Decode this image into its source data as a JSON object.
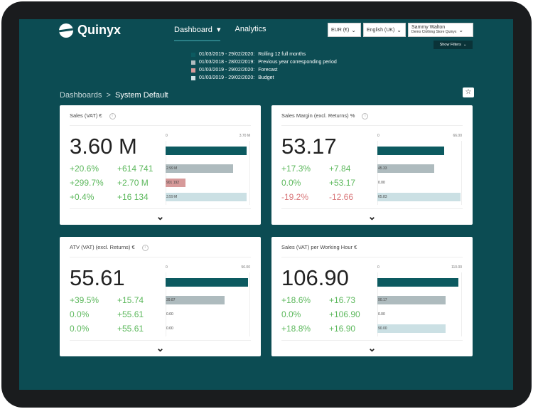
{
  "header": {
    "logo": "Quinyx",
    "nav": [
      "Dashboard",
      "Analytics"
    ],
    "nav_caret": "▾",
    "currency": "EUR (€)",
    "language": "English (UK)",
    "user_name": "Sammy Walton",
    "user_store": "Demo Clothing Store Quinyx",
    "show_filters": "Show Filters"
  },
  "legend": [
    {
      "dates": "01/03/2019 - 29/02/2020:",
      "label": "Rolling 12 full months",
      "color": "#0c5a60"
    },
    {
      "dates": "01/03/2018 - 28/02/2019:",
      "label": "Previous year corresponding period",
      "color": "#b0bcbf"
    },
    {
      "dates": "01/03/2019 - 29/02/2020:",
      "label": "Forecast",
      "color": "#d79a9a"
    },
    {
      "dates": "01/03/2019 - 29/02/2020:",
      "label": "Budget",
      "color": "#cfe2e6"
    }
  ],
  "breadcrumb": {
    "root": "Dashboards",
    "sep": ">",
    "current": "System Default"
  },
  "colors": {
    "positive": "#5cb85c",
    "negative": "#d9777a",
    "main": "#0c5a60",
    "previous": "#aebbbe",
    "forecast": "#d79a9a",
    "budget": "#cbe0e4"
  },
  "cards": [
    {
      "title": "Sales (VAT) €",
      "value": "3.60 M",
      "axis_min": "0",
      "axis_max": "3.70 M",
      "max": 3.7,
      "main": 3.6,
      "rows": [
        {
          "pct": "+20.6%",
          "abs": "+614 741",
          "neg": false,
          "bar": 2.99,
          "label": "2.99 M"
        },
        {
          "pct": "+299.7%",
          "abs": "+2.70 M",
          "neg": false,
          "bar": 0.901192,
          "label": "901 192"
        },
        {
          "pct": "+0.4%",
          "abs": "+16 134",
          "neg": false,
          "bar": 3.59,
          "label": "3.59 M"
        }
      ]
    },
    {
      "title": "Sales Margin (excl. Returns) %",
      "value": "53.17",
      "axis_min": "0",
      "axis_max": "66.00",
      "max": 66,
      "main": 53.17,
      "rows": [
        {
          "pct": "+17.3%",
          "abs": "+7.84",
          "neg": false,
          "bar": 45.33,
          "label": "45.33"
        },
        {
          "pct": "0.0%",
          "abs": "+53.17",
          "neg": false,
          "bar": 0,
          "label": "0.00"
        },
        {
          "pct": "-19.2%",
          "abs": "-12.66",
          "neg": true,
          "bar": 65.83,
          "label": "65.83"
        }
      ]
    },
    {
      "title": "ATV (VAT) (excl. Returns) €",
      "value": "55.61",
      "axis_min": "0",
      "axis_max": "56.00",
      "max": 56,
      "main": 55.61,
      "rows": [
        {
          "pct": "+39.5%",
          "abs": "+15.74",
          "neg": false,
          "bar": 39.87,
          "label": "39.87"
        },
        {
          "pct": "0.0%",
          "abs": "+55.61",
          "neg": false,
          "bar": 0,
          "label": "0.00"
        },
        {
          "pct": "0.0%",
          "abs": "+55.61",
          "neg": false,
          "bar": 0,
          "label": "0.00"
        }
      ]
    },
    {
      "title": "Sales (VAT) per Working Hour €",
      "value": "106.90",
      "axis_min": "0",
      "axis_max": "110.00",
      "max": 110,
      "main": 106.9,
      "rows": [
        {
          "pct": "+18.6%",
          "abs": "+16.73",
          "neg": false,
          "bar": 90.17,
          "label": "90.17"
        },
        {
          "pct": "0.0%",
          "abs": "+106.90",
          "neg": false,
          "bar": 0,
          "label": "0.00"
        },
        {
          "pct": "+18.8%",
          "abs": "+16.90",
          "neg": false,
          "bar": 90.0,
          "label": "90.00"
        }
      ]
    }
  ]
}
